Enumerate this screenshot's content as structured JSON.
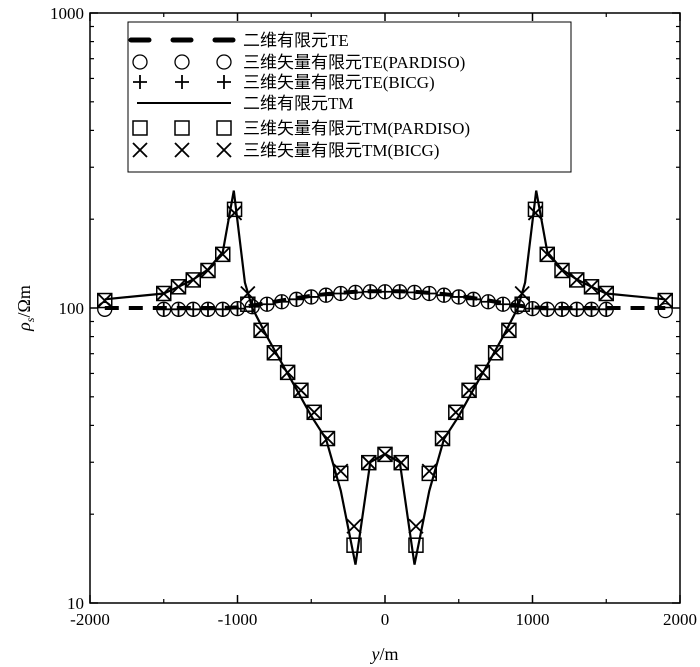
{
  "chart_data": {
    "type": "line",
    "title": "",
    "xlabel": {
      "main": "y",
      "unit": "/m"
    },
    "ylabel": {
      "main": "ρ",
      "sub": "s",
      "unit": "/Ωm"
    },
    "xlim": [
      -2000,
      2000
    ],
    "ylim": [
      10,
      1000
    ],
    "yscale": "log",
    "grid": false,
    "legend_position": "top-center",
    "x_ticks": [
      "-2000",
      "-1000",
      "0",
      "1000",
      "2000"
    ],
    "y_ticks": [
      "10",
      "100",
      "1000"
    ],
    "series": [
      {
        "name": "二维有限元TE",
        "style": "dashed-line",
        "x": [
          -1900,
          -1500,
          -1400,
          -1300,
          -1200,
          -1100,
          -1000,
          -900,
          -800,
          -700,
          -600,
          -500,
          -400,
          -300,
          -200,
          -100,
          0,
          100,
          200,
          300,
          400,
          500,
          600,
          700,
          800,
          900,
          1000,
          1100,
          1200,
          1300,
          1400,
          1500,
          1900
        ],
        "y": [
          100,
          100,
          100,
          100,
          100,
          100,
          100.5,
          102,
          104,
          106,
          108,
          110,
          111.5,
          112.5,
          113.5,
          114,
          114,
          114,
          113.5,
          112.5,
          111.5,
          110,
          108,
          106,
          104,
          102,
          100.5,
          100,
          100,
          100,
          100,
          100,
          100
        ]
      },
      {
        "name": "三维矢量有限元TE(PARDISO)",
        "style": "circle",
        "x": [
          -1900,
          -1500,
          -1400,
          -1300,
          -1200,
          -1100,
          -1000,
          -900,
          -800,
          -700,
          -600,
          -500,
          -400,
          -300,
          -200,
          -100,
          0,
          100,
          200,
          300,
          400,
          500,
          600,
          700,
          800,
          900,
          1000,
          1100,
          1200,
          1300,
          1400,
          1500,
          1900
        ],
        "y": [
          99,
          99,
          99,
          99,
          99,
          99,
          99.5,
          101,
          103,
          105,
          107,
          109,
          110.5,
          112,
          113,
          113.5,
          113.5,
          113.5,
          113,
          112,
          110.5,
          109,
          107,
          105,
          103,
          101,
          99.5,
          99,
          99,
          99,
          99,
          99,
          98
        ]
      },
      {
        "name": "三维矢量有限元TE(BICG)",
        "style": "plus",
        "x": [
          -1500,
          -1400,
          -1300,
          -1200,
          -1100,
          -1000,
          -900,
          -800,
          -700,
          -600,
          -500,
          -400,
          -300,
          -200,
          -100,
          0,
          100,
          200,
          300,
          400,
          500,
          600,
          700,
          800,
          900,
          1000,
          1100,
          1200,
          1300,
          1400,
          1500
        ],
        "y": [
          99,
          99,
          99,
          99,
          99,
          99.5,
          101,
          103,
          105,
          107,
          109,
          110.5,
          112,
          113,
          113.5,
          113.5,
          113.5,
          113,
          112,
          110.5,
          109,
          107,
          105,
          103,
          101,
          99.5,
          99,
          99,
          99,
          99,
          99
        ]
      },
      {
        "name": "二维有限元TM",
        "style": "solid-line",
        "x": [
          -1900,
          -1500,
          -1400,
          -1300,
          -1200,
          -1100,
          -1025,
          -950,
          -900,
          -800,
          -700,
          -600,
          -500,
          -400,
          -300,
          -200,
          -100,
          0,
          100,
          200,
          300,
          400,
          500,
          600,
          700,
          800,
          900,
          950,
          1025,
          1100,
          1200,
          1300,
          1400,
          1500,
          1900
        ],
        "y": [
          107,
          112,
          118,
          125,
          135,
          155,
          250,
          122,
          100,
          80,
          65,
          53,
          43,
          36,
          24,
          13.5,
          30,
          32,
          30,
          13.5,
          24,
          36,
          43,
          53,
          65,
          80,
          100,
          122,
          250,
          155,
          135,
          125,
          118,
          112,
          107
        ]
      },
      {
        "name": "三维矢量有限元TM(PARDISO)",
        "style": "square",
        "x": [
          -1900,
          -1500,
          -1400,
          -1300,
          -1200,
          -1100,
          -1020,
          -930,
          -840,
          -750,
          -660,
          -570,
          -480,
          -390,
          -300,
          -210,
          -110,
          0,
          110,
          210,
          300,
          390,
          480,
          570,
          660,
          750,
          840,
          930,
          1020,
          1100,
          1200,
          1300,
          1400,
          1500,
          1900
        ],
        "y": [
          106,
          112,
          118,
          124.5,
          134,
          152,
          216,
          103,
          84,
          70.5,
          60.5,
          52.6,
          44.3,
          36.1,
          27.5,
          15.7,
          29.9,
          31.9,
          29.9,
          15.7,
          27.5,
          36.1,
          44.3,
          52.6,
          60.5,
          70.5,
          84,
          103,
          216,
          152,
          134,
          124.5,
          118,
          112,
          106
        ]
      },
      {
        "name": "三维矢量有限元TM(BICG)",
        "style": "cross",
        "x": [
          -1900,
          -1500,
          -1400,
          -1300,
          -1200,
          -1100,
          -1020,
          -930,
          -840,
          -750,
          -660,
          -570,
          -480,
          -390,
          -300,
          -210,
          -110,
          0,
          110,
          210,
          300,
          390,
          480,
          570,
          660,
          750,
          840,
          930,
          1020,
          1100,
          1200,
          1300,
          1400,
          1500,
          1900
        ],
        "y": [
          106,
          112,
          118,
          124.5,
          134,
          152,
          210,
          112,
          84,
          70.5,
          60.5,
          52.6,
          44.3,
          36.1,
          28,
          18.2,
          29.9,
          31.9,
          29.9,
          18.2,
          28,
          36.1,
          44.3,
          52.6,
          60.5,
          70.5,
          84,
          112,
          210,
          152,
          134,
          124.5,
          118,
          112,
          106
        ]
      }
    ]
  }
}
